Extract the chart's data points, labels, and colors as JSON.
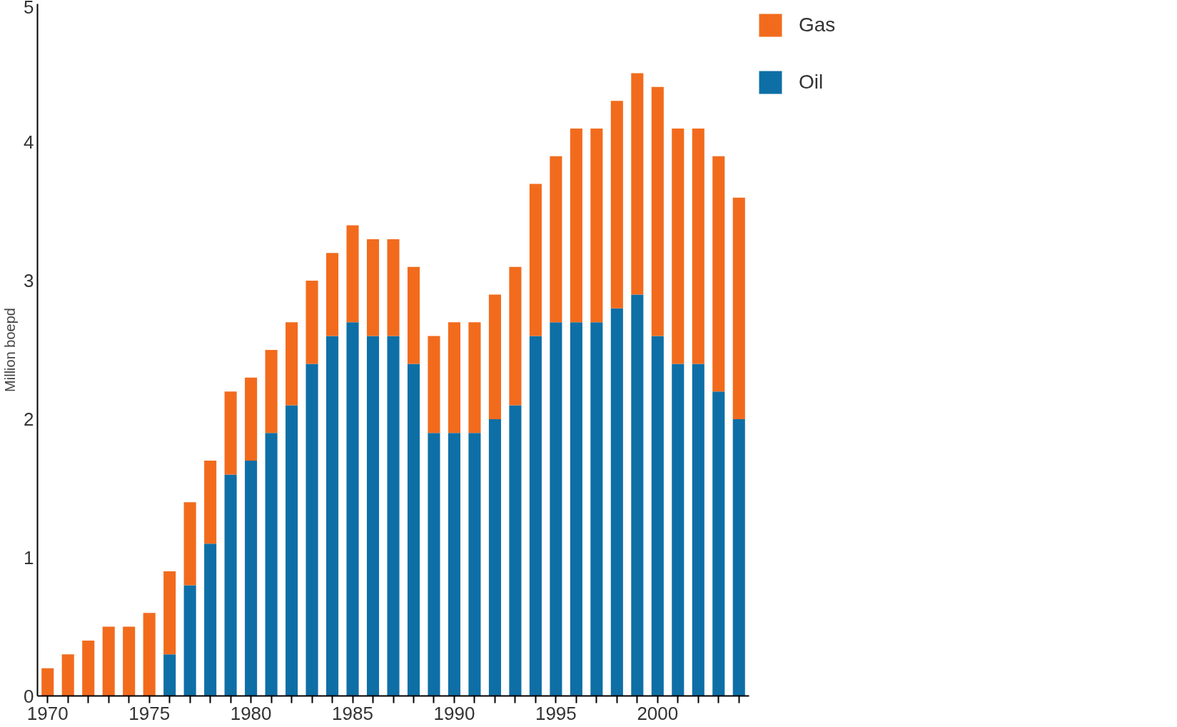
{
  "chart_data": {
    "type": "bar",
    "ylabel": "Million boepd",
    "stacked": true,
    "x": [
      1970,
      1971,
      1972,
      1973,
      1974,
      1975,
      1976,
      1977,
      1978,
      1979,
      1980,
      1981,
      1982,
      1983,
      1984,
      1985,
      1986,
      1987,
      1988,
      1989,
      1990,
      1991,
      1992,
      1993,
      1994,
      1995,
      1996,
      1997,
      1998,
      1999,
      2000,
      2001,
      2002,
      2003,
      2004
    ],
    "series": [
      {
        "name": "Oil",
        "color": "#0e6fa6",
        "values": [
          0,
          0,
          0,
          0,
          0,
          0,
          0.3,
          0.8,
          1.1,
          1.6,
          1.7,
          1.9,
          2.1,
          2.4,
          2.6,
          2.7,
          2.6,
          2.6,
          2.4,
          1.9,
          1.9,
          1.9,
          2.0,
          2.1,
          2.6,
          2.7,
          2.7,
          2.7,
          2.8,
          2.9,
          2.6,
          2.4,
          2.4,
          2.2,
          2.0
        ]
      },
      {
        "name": "Gas",
        "color": "#f26b1d",
        "values": [
          0.2,
          0.3,
          0.4,
          0.5,
          0.5,
          0.6,
          0.6,
          0.6,
          0.6,
          0.6,
          0.6,
          0.6,
          0.6,
          0.6,
          0.6,
          0.7,
          0.7,
          0.7,
          0.7,
          0.7,
          0.8,
          0.8,
          0.9,
          1.0,
          1.1,
          1.2,
          1.4,
          1.4,
          1.5,
          1.6,
          1.8,
          1.7,
          1.7,
          1.7,
          1.6
        ]
      }
    ],
    "xlim": [
      1969.5,
      2004.5
    ],
    "xticks": [
      1970,
      {
        "value": 1971,
        "label": null
      },
      {
        "value": 1972,
        "label": null
      },
      {
        "value": 1973,
        "label": null
      },
      {
        "value": 1974,
        "label": null
      },
      1975,
      {
        "value": 1976,
        "label": null
      },
      {
        "value": 1977,
        "label": null
      },
      {
        "value": 1978,
        "label": null
      },
      {
        "value": 1979,
        "label": null
      },
      1980,
      {
        "value": 1981,
        "label": null
      },
      {
        "value": 1982,
        "label": null
      },
      {
        "value": 1983,
        "label": null
      },
      {
        "value": 1984,
        "label": null
      },
      1985,
      {
        "value": 1986,
        "label": null
      },
      {
        "value": 1987,
        "label": null
      },
      {
        "value": 1988,
        "label": null
      },
      {
        "value": 1989,
        "label": null
      },
      1990,
      {
        "value": 1991,
        "label": null
      },
      {
        "value": 1992,
        "label": null
      },
      {
        "value": 1993,
        "label": null
      },
      {
        "value": 1994,
        "label": null
      },
      1995,
      {
        "value": 1996,
        "label": null
      },
      {
        "value": 1997,
        "label": null
      },
      {
        "value": 1998,
        "label": null
      },
      {
        "value": 1999,
        "label": null
      },
      2000,
      {
        "value": 2001,
        "label": null
      },
      {
        "value": 2002,
        "label": null
      },
      {
        "value": 2003,
        "label": null
      },
      {
        "value": 2004,
        "label": null
      }
    ],
    "ylim": [
      0,
      5
    ],
    "yticks": [
      0,
      1,
      2,
      3,
      4,
      5
    ],
    "grid": false,
    "legend": "top right"
  }
}
